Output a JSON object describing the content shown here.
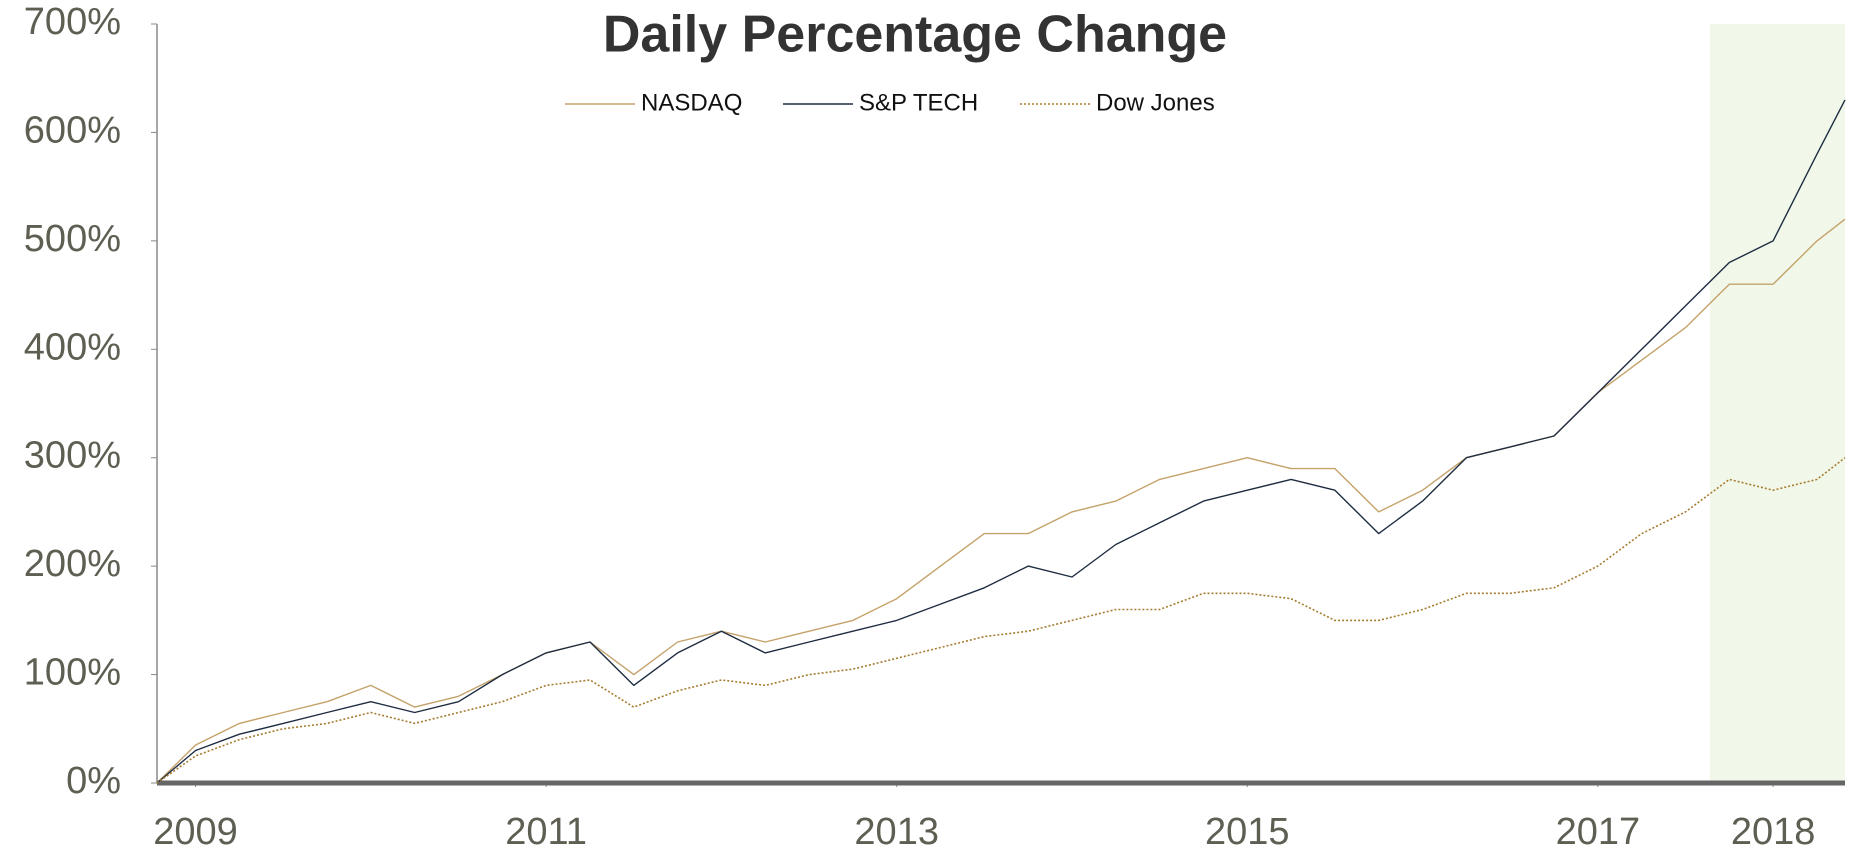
{
  "chart_data": {
    "type": "line",
    "title": "Daily Percentage Change",
    "x": [
      2008.78,
      2009.0,
      2009.25,
      2009.5,
      2009.75,
      2010.0,
      2010.25,
      2010.5,
      2010.75,
      2011.0,
      2011.25,
      2011.5,
      2011.75,
      2012.0,
      2012.25,
      2012.5,
      2012.75,
      2013.0,
      2013.25,
      2013.5,
      2013.75,
      2014.0,
      2014.25,
      2014.5,
      2014.75,
      2015.0,
      2015.25,
      2015.5,
      2015.75,
      2016.0,
      2016.25,
      2016.5,
      2016.75,
      2017.0,
      2017.25,
      2017.5,
      2017.75,
      2018.0,
      2018.25,
      2018.41
    ],
    "series": [
      {
        "name": "NASDAQ",
        "color": "#c4a26a",
        "linestyle": "solid",
        "values": [
          0,
          35,
          55,
          65,
          75,
          90,
          70,
          80,
          100,
          120,
          130,
          100,
          130,
          140,
          130,
          140,
          150,
          170,
          200,
          230,
          230,
          250,
          260,
          280,
          290,
          300,
          290,
          290,
          250,
          270,
          300,
          310,
          320,
          360,
          390,
          420,
          460,
          460,
          500,
          520
        ]
      },
      {
        "name": "S&P TECH",
        "color": "#1f2d42",
        "linestyle": "solid",
        "values": [
          0,
          30,
          45,
          55,
          65,
          75,
          65,
          75,
          100,
          120,
          130,
          90,
          120,
          140,
          120,
          130,
          140,
          150,
          165,
          180,
          200,
          190,
          220,
          240,
          260,
          270,
          280,
          270,
          230,
          260,
          300,
          310,
          320,
          360,
          400,
          440,
          480,
          500,
          580,
          630
        ]
      },
      {
        "name": "Dow Jones",
        "color": "#a67c2e",
        "linestyle": "dotted",
        "values": [
          0,
          25,
          40,
          50,
          55,
          65,
          55,
          65,
          75,
          90,
          95,
          70,
          85,
          95,
          90,
          100,
          105,
          115,
          125,
          135,
          140,
          150,
          160,
          160,
          175,
          175,
          170,
          150,
          150,
          160,
          175,
          175,
          180,
          200,
          230,
          250,
          280,
          270,
          280,
          300
        ]
      }
    ],
    "xlim": [
      2008.78,
      2018.41
    ],
    "xticks": [
      2009,
      2011,
      2013,
      2015,
      2017,
      2018
    ],
    "ylim": [
      0,
      700
    ],
    "yticks": [
      {
        "value": 0,
        "label": "0%"
      },
      {
        "value": 100,
        "label": "100%"
      },
      {
        "value": 200,
        "label": "200%"
      },
      {
        "value": 300,
        "label": "300%"
      },
      {
        "value": 400,
        "label": "400%"
      },
      {
        "value": 500,
        "label": "500%"
      },
      {
        "value": 600,
        "label": "600%"
      },
      {
        "value": 700,
        "label": "700%"
      }
    ],
    "highlight_range": [
      2017.64,
      2018.41
    ],
    "highlight_color": "#f1f8ea",
    "grid": false,
    "legend": "top"
  }
}
